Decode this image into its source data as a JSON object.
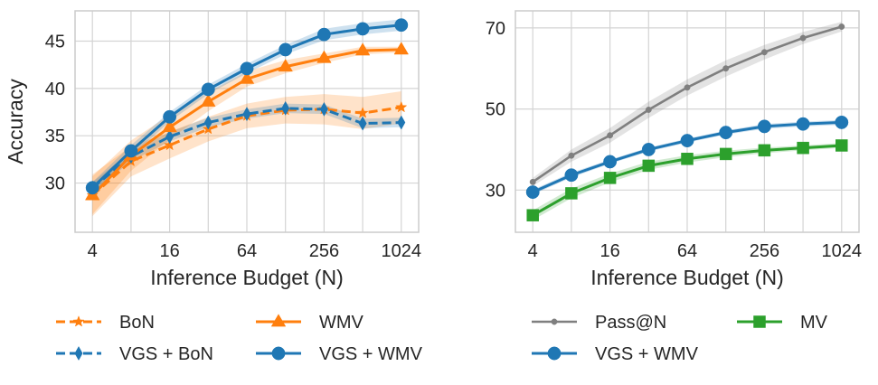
{
  "chart_data": [
    {
      "type": "line",
      "xlabel": "Inference Budget (N)",
      "ylabel": "Accuracy",
      "xscale": "log2",
      "x": [
        4,
        8,
        16,
        32,
        64,
        128,
        256,
        512,
        1024
      ],
      "xticks": [
        4,
        16,
        64,
        256,
        1024
      ],
      "xtick_labels": [
        "4",
        "16",
        "64",
        "256",
        "1024"
      ],
      "yticks": [
        30,
        35,
        40,
        45
      ],
      "ytick_labels": [
        "30",
        "35",
        "40",
        "45"
      ],
      "ylim": [
        24.8,
        48.2
      ],
      "grid": true,
      "series": [
        {
          "name": "BoN",
          "color": "#ff7f0e",
          "linestyle": "dashed",
          "marker": "star",
          "values": [
            28.7,
            32.3,
            34.0,
            35.7,
            37.1,
            37.7,
            37.8,
            37.4,
            38.0
          ],
          "band": [
            2.2,
            1.6,
            1.4,
            1.3,
            1.3,
            1.4,
            1.6,
            1.7,
            1.7
          ]
        },
        {
          "name": "VGS + BoN",
          "color": "#1f77b4",
          "linestyle": "dashed",
          "marker": "thin_diamond",
          "values": [
            29.5,
            32.8,
            34.9,
            36.4,
            37.3,
            37.9,
            37.8,
            36.3,
            36.4
          ],
          "band": [
            0.6,
            0.5,
            0.5,
            0.5,
            0.5,
            0.5,
            0.5,
            0.5,
            0.5
          ]
        },
        {
          "name": "WMV",
          "color": "#ff7f0e",
          "linestyle": "solid",
          "marker": "triangle",
          "values": [
            28.7,
            32.9,
            35.9,
            38.6,
            41.0,
            42.3,
            43.2,
            44.0,
            44.1
          ],
          "band": [
            2.0,
            1.6,
            1.3,
            1.0,
            0.8,
            0.7,
            0.5,
            0.4,
            0.3
          ]
        },
        {
          "name": "VGS + WMV",
          "color": "#1f77b4",
          "linestyle": "solid",
          "marker": "circle",
          "values": [
            29.5,
            33.4,
            37.0,
            39.9,
            42.1,
            44.1,
            45.7,
            46.3,
            46.7
          ],
          "band": [
            0.6,
            0.6,
            0.5,
            0.5,
            0.5,
            0.5,
            0.6,
            0.6,
            0.6
          ]
        }
      ]
    },
    {
      "type": "line",
      "xlabel": "Inference Budget (N)",
      "ylabel": "",
      "xscale": "log2",
      "x": [
        4,
        8,
        16,
        32,
        64,
        128,
        256,
        512,
        1024
      ],
      "xticks": [
        4,
        16,
        64,
        256,
        1024
      ],
      "xtick_labels": [
        "4",
        "16",
        "64",
        "256",
        "1024"
      ],
      "yticks": [
        30,
        50,
        70
      ],
      "ytick_labels": [
        "30",
        "50",
        "70"
      ],
      "ylim": [
        19.6,
        74.2
      ],
      "grid": true,
      "series": [
        {
          "name": "Pass@N",
          "color": "#7f7f7f",
          "linestyle": "solid",
          "marker": "point",
          "values": [
            32.0,
            38.5,
            43.5,
            49.8,
            55.3,
            60.0,
            64.0,
            67.5,
            70.3
          ],
          "band": [
            1.0,
            1.5,
            1.8,
            2.0,
            2.0,
            2.0,
            1.8,
            1.5,
            1.2
          ]
        },
        {
          "name": "VGS + WMV",
          "color": "#1f77b4",
          "linestyle": "solid",
          "marker": "circle",
          "values": [
            29.5,
            33.7,
            37.0,
            40.0,
            42.2,
            44.2,
            45.7,
            46.3,
            46.7
          ],
          "band": [
            0.6,
            0.6,
            0.5,
            0.5,
            0.5,
            0.5,
            0.6,
            0.6,
            0.6
          ]
        },
        {
          "name": "MV",
          "color": "#2ca02c",
          "linestyle": "solid",
          "marker": "square",
          "values": [
            23.8,
            29.2,
            33.0,
            36.0,
            37.7,
            38.9,
            39.8,
            40.4,
            41.0
          ],
          "band": [
            1.2,
            1.2,
            1.1,
            1.0,
            0.9,
            0.8,
            0.7,
            0.6,
            0.6
          ]
        }
      ]
    }
  ],
  "legends": [
    {
      "items": [
        {
          "label": "BoN",
          "color": "#ff7f0e",
          "linestyle": "dashed",
          "marker": "star"
        },
        {
          "label": "WMV",
          "color": "#ff7f0e",
          "linestyle": "solid",
          "marker": "triangle"
        },
        {
          "label": "VGS + BoN",
          "color": "#1f77b4",
          "linestyle": "dashed",
          "marker": "thin_diamond"
        },
        {
          "label": "VGS + WMV",
          "color": "#1f77b4",
          "linestyle": "solid",
          "marker": "circle"
        }
      ]
    },
    {
      "items": [
        {
          "label": "Pass@N",
          "color": "#7f7f7f",
          "linestyle": "solid",
          "marker": "point"
        },
        {
          "label": "MV",
          "color": "#2ca02c",
          "linestyle": "solid",
          "marker": "square"
        },
        {
          "label": "VGS + WMV",
          "color": "#1f77b4",
          "linestyle": "solid",
          "marker": "circle"
        }
      ]
    }
  ]
}
